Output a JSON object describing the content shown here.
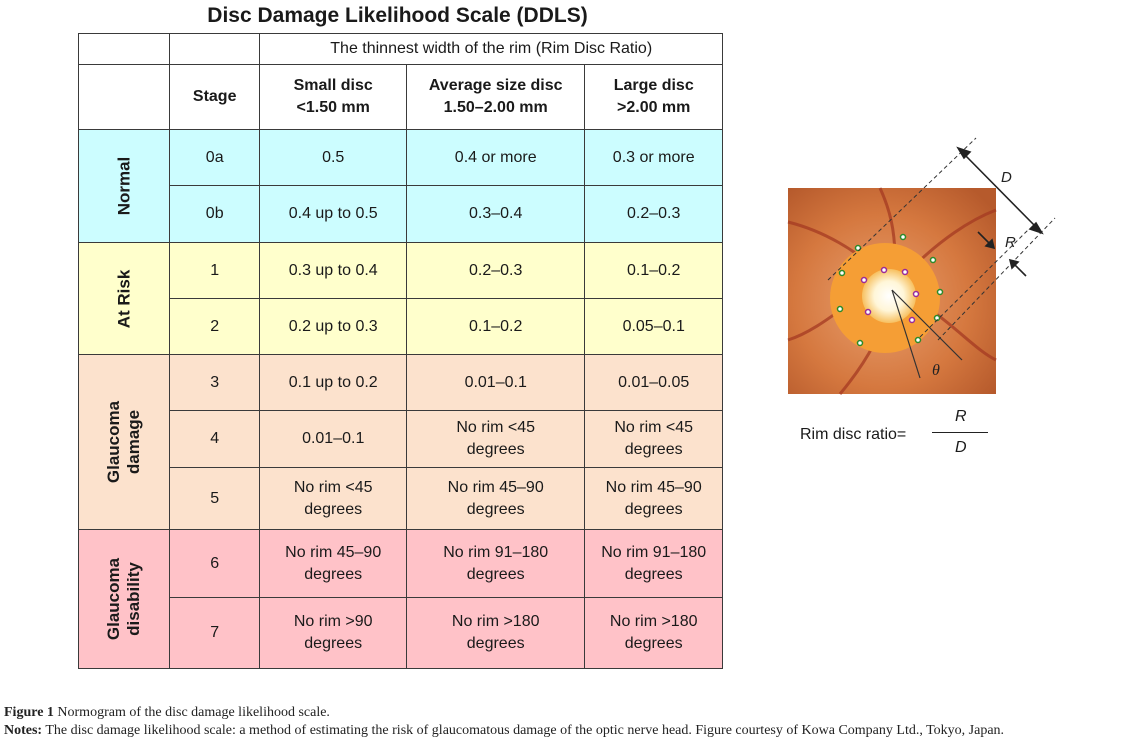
{
  "title": "Disc Damage Likelihood Scale (DDLS)",
  "table": {
    "rim_header": "The thinnest width of the rim (Rim Disc Ratio)",
    "stage_header": "Stage",
    "columns": [
      {
        "line1": "Small disc",
        "line2": "<1.50 mm"
      },
      {
        "line1": "Average size disc",
        "line2": "1.50–2.00 mm"
      },
      {
        "line1": "Large disc",
        "line2": ">2.00 mm"
      }
    ],
    "categories": [
      {
        "label": "Normal",
        "line2": ""
      },
      {
        "label": "At Risk",
        "line2": ""
      },
      {
        "label": "Glaucoma",
        "line2": "damage"
      },
      {
        "label": "Glaucoma",
        "line2": "disability"
      }
    ],
    "rows": [
      {
        "stage": "0a",
        "small": [
          "0.5"
        ],
        "average": [
          "0.4 or more"
        ],
        "large": [
          "0.3 or more"
        ]
      },
      {
        "stage": "0b",
        "small": [
          "0.4 up to 0.5"
        ],
        "average": [
          "0.3–0.4"
        ],
        "large": [
          "0.2–0.3"
        ]
      },
      {
        "stage": "1",
        "small": [
          "0.3 up to 0.4"
        ],
        "average": [
          "0.2–0.3"
        ],
        "large": [
          "0.1–0.2"
        ]
      },
      {
        "stage": "2",
        "small": [
          "0.2 up to 0.3"
        ],
        "average": [
          "0.1–0.2"
        ],
        "large": [
          "0.05–0.1"
        ]
      },
      {
        "stage": "3",
        "small": [
          "0.1 up to 0.2"
        ],
        "average": [
          "0.01–0.1"
        ],
        "large": [
          "0.01–0.05"
        ]
      },
      {
        "stage": "4",
        "small": [
          "0.01–0.1"
        ],
        "average": [
          "No rim <45",
          "degrees"
        ],
        "large": [
          "No rim <45",
          "degrees"
        ]
      },
      {
        "stage": "5",
        "small": [
          "No rim <45",
          "degrees"
        ],
        "average": [
          "No rim 45–90",
          "degrees"
        ],
        "large": [
          "No rim 45–90",
          "degrees"
        ]
      },
      {
        "stage": "6",
        "small": [
          "No rim 45–90",
          "degrees"
        ],
        "average": [
          "No rim 91–180",
          "degrees"
        ],
        "large": [
          "No rim 91–180",
          "degrees"
        ]
      },
      {
        "stage": "7",
        "small": [
          "No rim >90",
          "degrees"
        ],
        "average": [
          "No rim >180",
          "degrees"
        ],
        "large": [
          "No rim >180",
          "degrees"
        ]
      }
    ]
  },
  "diagram": {
    "label_d": "D",
    "label_r": "R",
    "label_theta": "θ"
  },
  "ratio": {
    "label": "Rim disc ratio=",
    "numerator": "R",
    "denominator": "D"
  },
  "caption": {
    "fig_label": "Figure 1",
    "fig_text": " Normogram of the disc damage likelihood scale.",
    "notes_label": "Notes:",
    "notes_text": " The disc damage likelihood scale: a method of estimating the risk of glaucomatous damage of the optic nerve head. Figure courtesy of Kowa Company Ltd., Tokyo, Japan."
  },
  "colors": {
    "normal": "#ccfdff",
    "at_risk": "#ffffcc",
    "glaucoma_damage": "#fce2cd",
    "glaucoma_disability": "#ffc2c8"
  }
}
